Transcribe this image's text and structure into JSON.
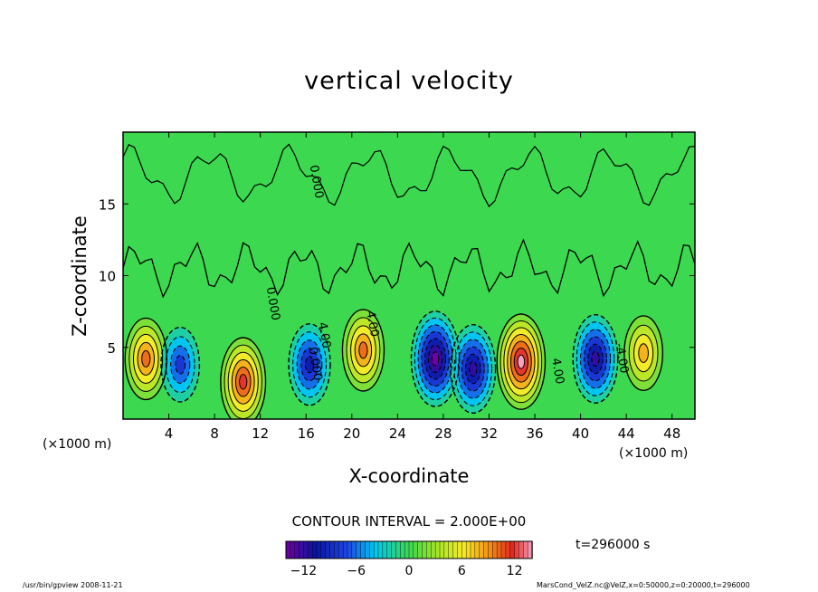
{
  "chart_data": {
    "type": "heatmap",
    "title": "vertical velocity",
    "xlabel": "X-coordinate",
    "ylabel": "Z-coordinate",
    "x_unit": "(×1000 m)",
    "xlim": [
      0,
      50
    ],
    "ylim": [
      0,
      20
    ],
    "x_ticks": [
      4,
      8,
      12,
      16,
      20,
      24,
      28,
      32,
      36,
      40,
      44,
      48
    ],
    "y_ticks": [
      5,
      10,
      15
    ],
    "contour_interval": "CONTOUR INTERVAL = 2.000E+00",
    "contour_labels": [
      {
        "x": 21.5,
        "y": 6.6,
        "text": "4.00"
      },
      {
        "x": 17.3,
        "y": 5.8,
        "text": "4.00"
      },
      {
        "x": 37.7,
        "y": 3.3,
        "text": "4.00"
      },
      {
        "x": 43.3,
        "y": 4.2,
        "text": "-4.00"
      },
      {
        "x": 12.8,
        "y": 8.0,
        "text": "0.000"
      },
      {
        "x": 16.5,
        "y": 3.8,
        "text": "0.000"
      },
      {
        "x": 16.6,
        "y": 16.5,
        "text": "0.000"
      }
    ],
    "colorbar": {
      "range": [
        -14,
        14
      ],
      "ticks": [
        -12,
        -6,
        0,
        6,
        12
      ]
    },
    "cells": [
      {
        "x": 2,
        "y": 4.2,
        "value": 10
      },
      {
        "x": 5,
        "y": 3.8,
        "value": -8
      },
      {
        "x": 10.5,
        "y": 2.6,
        "value": 12
      },
      {
        "x": 16.3,
        "y": 3.8,
        "value": -10
      },
      {
        "x": 21,
        "y": 4.8,
        "value": 10
      },
      {
        "x": 27.3,
        "y": 4.2,
        "value": -14
      },
      {
        "x": 30.6,
        "y": 3.5,
        "value": -12
      },
      {
        "x": 34.8,
        "y": 4.0,
        "value": 14
      },
      {
        "x": 41.3,
        "y": 4.2,
        "value": -12
      },
      {
        "x": 45.5,
        "y": 4.6,
        "value": 8
      }
    ]
  },
  "time_label": "t=296000  s",
  "footer": {
    "left": "/usr/bin/gpview   2008-11-21",
    "right": "MarsCond_VelZ.nc@VelZ,x=0:50000,z=0:20000,t=296000"
  },
  "colors": {
    "background_field": "#3cd850",
    "frame": "#000000"
  }
}
